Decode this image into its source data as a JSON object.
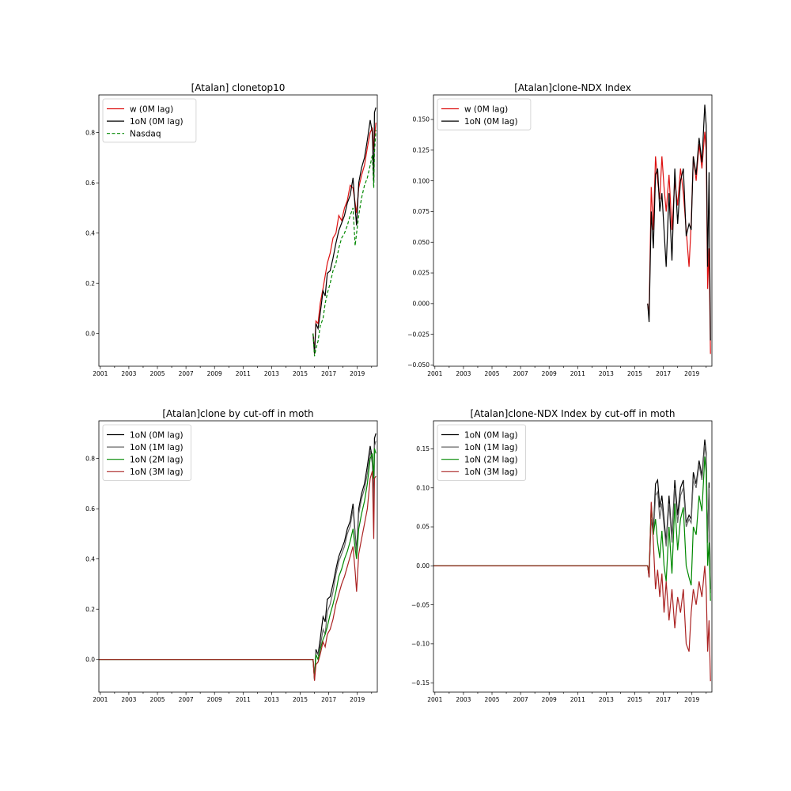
{
  "chart_data": [
    {
      "type": "line",
      "title": "[Atalan] clonetop10",
      "xlabel": "",
      "ylabel": "",
      "xlim": [
        2000.9,
        2020.4
      ],
      "ylim": [
        -0.13,
        0.95
      ],
      "xticks": [
        "2001",
        "2003",
        "2005",
        "2007",
        "2009",
        "2011",
        "2013",
        "2015",
        "2017",
        "2019"
      ],
      "yticks": [
        "0.0",
        "0.2",
        "0.4",
        "0.6",
        "0.8"
      ],
      "legend": "upper-left",
      "series": [
        {
          "name": "w    (0M lag)",
          "color": "#dd1111",
          "dash": "",
          "x": [
            2015.9,
            2016.0,
            2016.1,
            2016.25,
            2016.4,
            2016.6,
            2016.75,
            2016.9,
            2017.1,
            2017.3,
            2017.5,
            2017.7,
            2017.9,
            2018.1,
            2018.3,
            2018.5,
            2018.7,
            2018.85,
            2018.95,
            2019.1,
            2019.3,
            2019.5,
            2019.7,
            2019.9,
            2020.05,
            2020.15,
            2020.2,
            2020.3
          ],
          "values": [
            0.0,
            -0.08,
            0.05,
            0.04,
            0.12,
            0.18,
            0.23,
            0.28,
            0.32,
            0.38,
            0.4,
            0.47,
            0.45,
            0.5,
            0.53,
            0.59,
            0.58,
            0.52,
            0.48,
            0.58,
            0.63,
            0.67,
            0.74,
            0.8,
            0.82,
            0.73,
            0.78,
            0.84
          ]
        },
        {
          "name": "1oN (0M lag)",
          "color": "#000000",
          "dash": "",
          "x": [
            2015.9,
            2016.0,
            2016.1,
            2016.25,
            2016.4,
            2016.6,
            2016.75,
            2016.9,
            2017.1,
            2017.3,
            2017.5,
            2017.7,
            2017.9,
            2018.1,
            2018.3,
            2018.5,
            2018.7,
            2018.85,
            2018.95,
            2019.1,
            2019.3,
            2019.5,
            2019.7,
            2019.9,
            2020.05,
            2020.15,
            2020.2,
            2020.3
          ],
          "values": [
            0.0,
            -0.08,
            0.04,
            0.02,
            0.08,
            0.17,
            0.15,
            0.24,
            0.25,
            0.3,
            0.36,
            0.41,
            0.44,
            0.47,
            0.52,
            0.55,
            0.62,
            0.5,
            0.43,
            0.6,
            0.66,
            0.7,
            0.77,
            0.85,
            0.8,
            0.6,
            0.88,
            0.9
          ]
        },
        {
          "name": "Nasdaq",
          "color": "#008800",
          "dash": "4,2.5",
          "x": [
            2015.9,
            2016.0,
            2016.1,
            2016.25,
            2016.4,
            2016.6,
            2016.75,
            2016.9,
            2017.1,
            2017.3,
            2017.5,
            2017.7,
            2017.9,
            2018.1,
            2018.3,
            2018.5,
            2018.7,
            2018.85,
            2018.95,
            2019.1,
            2019.3,
            2019.5,
            2019.7,
            2019.9,
            2020.05,
            2020.15,
            2020.2,
            2020.3
          ],
          "values": [
            0.0,
            -0.09,
            -0.06,
            -0.03,
            0.03,
            0.06,
            0.12,
            0.16,
            0.2,
            0.25,
            0.28,
            0.34,
            0.38,
            0.4,
            0.43,
            0.47,
            0.5,
            0.35,
            0.4,
            0.47,
            0.54,
            0.59,
            0.62,
            0.67,
            0.71,
            0.58,
            0.72,
            0.81
          ]
        }
      ]
    },
    {
      "type": "line",
      "title": "[Atalan]clone-NDX Index",
      "xlabel": "",
      "ylabel": "",
      "xlim": [
        2000.9,
        2020.4
      ],
      "ylim": [
        -0.051,
        0.17
      ],
      "xticks": [
        "2001",
        "2003",
        "2005",
        "2007",
        "2009",
        "2011",
        "2013",
        "2015",
        "2017",
        "2019"
      ],
      "yticks": [
        "−0.050",
        "−0.025",
        "0.000",
        "0.025",
        "0.050",
        "0.075",
        "0.100",
        "0.125",
        "0.150"
      ],
      "legend": "upper-left",
      "series": [
        {
          "name": "w    (0M lag)",
          "color": "#dd1111",
          "dash": "",
          "x": [
            2015.9,
            2016.0,
            2016.15,
            2016.3,
            2016.45,
            2016.6,
            2016.75,
            2016.9,
            2017.05,
            2017.2,
            2017.4,
            2017.6,
            2017.8,
            2018.0,
            2018.2,
            2018.4,
            2018.6,
            2018.8,
            2018.95,
            2019.1,
            2019.3,
            2019.5,
            2019.7,
            2019.9,
            2020.0,
            2020.1,
            2020.2,
            2020.3
          ],
          "values": [
            0.0,
            -0.01,
            0.095,
            0.06,
            0.12,
            0.1,
            0.085,
            0.12,
            0.095,
            0.075,
            0.105,
            0.06,
            0.1,
            0.08,
            0.11,
            0.09,
            0.06,
            0.03,
            0.065,
            0.12,
            0.1,
            0.13,
            0.11,
            0.14,
            0.125,
            0.012,
            0.045,
            -0.041
          ]
        },
        {
          "name": "1oN (0M lag)",
          "color": "#000000",
          "dash": "",
          "x": [
            2015.9,
            2016.0,
            2016.15,
            2016.3,
            2016.45,
            2016.6,
            2016.75,
            2016.9,
            2017.05,
            2017.2,
            2017.4,
            2017.6,
            2017.8,
            2018.0,
            2018.2,
            2018.4,
            2018.6,
            2018.8,
            2018.95,
            2019.1,
            2019.3,
            2019.5,
            2019.7,
            2019.9,
            2020.0,
            2020.1,
            2020.2,
            2020.3
          ],
          "values": [
            0.0,
            -0.015,
            0.075,
            0.045,
            0.105,
            0.11,
            0.075,
            0.09,
            0.06,
            0.03,
            0.09,
            0.035,
            0.11,
            0.065,
            0.1,
            0.11,
            0.055,
            0.065,
            0.06,
            0.12,
            0.105,
            0.135,
            0.115,
            0.162,
            0.145,
            0.03,
            0.107,
            -0.03
          ]
        }
      ]
    },
    {
      "type": "line",
      "title": "[Atalan]clone by cut-off in moth",
      "xlabel": "",
      "ylabel": "",
      "xlim": [
        2000.9,
        2020.4
      ],
      "ylim": [
        -0.13,
        0.95
      ],
      "xticks": [
        "2001",
        "2003",
        "2005",
        "2007",
        "2009",
        "2011",
        "2013",
        "2015",
        "2017",
        "2019"
      ],
      "yticks": [
        "0.0",
        "0.2",
        "0.4",
        "0.6",
        "0.8"
      ],
      "legend": "upper-left",
      "series": [
        {
          "name": "1oN (0M lag)",
          "color": "#000000",
          "dash": "",
          "x": [
            2000.9,
            2015.9,
            2016.0,
            2016.1,
            2016.25,
            2016.4,
            2016.6,
            2016.75,
            2016.9,
            2017.1,
            2017.3,
            2017.5,
            2017.7,
            2017.9,
            2018.1,
            2018.3,
            2018.5,
            2018.7,
            2018.85,
            2018.95,
            2019.1,
            2019.3,
            2019.5,
            2019.7,
            2019.9,
            2020.05,
            2020.15,
            2020.2,
            2020.3
          ],
          "values": [
            0.0,
            0.0,
            -0.08,
            0.04,
            0.02,
            0.08,
            0.17,
            0.15,
            0.24,
            0.25,
            0.3,
            0.36,
            0.41,
            0.44,
            0.47,
            0.52,
            0.55,
            0.62,
            0.5,
            0.43,
            0.6,
            0.66,
            0.7,
            0.77,
            0.85,
            0.8,
            0.6,
            0.88,
            0.9
          ]
        },
        {
          "name": "1oN (1M lag)",
          "color": "#666666",
          "dash": "",
          "x": [
            2000.9,
            2015.9,
            2016.0,
            2016.1,
            2016.25,
            2016.4,
            2016.6,
            2016.75,
            2016.9,
            2017.1,
            2017.3,
            2017.5,
            2017.7,
            2017.9,
            2018.1,
            2018.3,
            2018.5,
            2018.7,
            2018.85,
            2018.95,
            2019.1,
            2019.3,
            2019.5,
            2019.7,
            2019.9,
            2020.05,
            2020.15,
            2020.2,
            2020.3
          ],
          "values": [
            0.0,
            0.0,
            -0.07,
            0.03,
            0.02,
            0.05,
            0.12,
            0.1,
            0.19,
            0.22,
            0.27,
            0.34,
            0.39,
            0.42,
            0.45,
            0.5,
            0.53,
            0.6,
            0.49,
            0.42,
            0.58,
            0.64,
            0.68,
            0.74,
            0.83,
            0.78,
            0.58,
            0.85,
            0.87
          ]
        },
        {
          "name": "1oN (2M lag)",
          "color": "#008800",
          "dash": "",
          "x": [
            2000.9,
            2015.9,
            2016.0,
            2016.1,
            2016.25,
            2016.4,
            2016.6,
            2016.75,
            2016.9,
            2017.1,
            2017.3,
            2017.5,
            2017.7,
            2017.9,
            2018.1,
            2018.3,
            2018.5,
            2018.7,
            2018.85,
            2018.95,
            2019.1,
            2019.3,
            2019.5,
            2019.7,
            2019.9,
            2020.05,
            2020.15,
            2020.2,
            2020.3
          ],
          "values": [
            0.0,
            0.0,
            -0.08,
            0.02,
            0.0,
            0.04,
            0.08,
            0.1,
            0.13,
            0.18,
            0.22,
            0.27,
            0.33,
            0.36,
            0.4,
            0.43,
            0.47,
            0.52,
            0.44,
            0.4,
            0.52,
            0.58,
            0.63,
            0.7,
            0.8,
            0.82,
            0.72,
            0.84,
            0.82
          ]
        },
        {
          "name": "1oN (3M lag)",
          "color": "#aa2222",
          "dash": "",
          "x": [
            2000.9,
            2015.9,
            2016.0,
            2016.1,
            2016.25,
            2016.4,
            2016.6,
            2016.75,
            2016.9,
            2017.1,
            2017.3,
            2017.5,
            2017.7,
            2017.9,
            2018.1,
            2018.3,
            2018.5,
            2018.7,
            2018.85,
            2018.95,
            2019.1,
            2019.3,
            2019.5,
            2019.7,
            2019.9,
            2020.05,
            2020.15,
            2020.2,
            2020.3
          ],
          "values": [
            0.0,
            0.0,
            -0.085,
            -0.02,
            -0.01,
            0.02,
            0.07,
            0.05,
            0.1,
            0.12,
            0.16,
            0.22,
            0.26,
            0.3,
            0.33,
            0.37,
            0.41,
            0.45,
            0.35,
            0.27,
            0.42,
            0.48,
            0.54,
            0.6,
            0.72,
            0.75,
            0.48,
            0.72,
            0.73
          ]
        }
      ]
    },
    {
      "type": "line",
      "title": "[Atalan]clone-NDX Index by cut-off in moth",
      "xlabel": "",
      "ylabel": "",
      "xlim": [
        2000.9,
        2020.4
      ],
      "ylim": [
        -0.162,
        0.186
      ],
      "xticks": [
        "2001",
        "2003",
        "2005",
        "2007",
        "2009",
        "2011",
        "2013",
        "2015",
        "2017",
        "2019"
      ],
      "yticks": [
        "−0.15",
        "−0.10",
        "−0.05",
        "0.00",
        "0.05",
        "0.10",
        "0.15"
      ],
      "legend": "upper-left",
      "series": [
        {
          "name": "1oN (0M lag)",
          "color": "#000000",
          "dash": "",
          "x": [
            2000.9,
            2015.9,
            2016.0,
            2016.15,
            2016.3,
            2016.45,
            2016.6,
            2016.75,
            2016.9,
            2017.05,
            2017.2,
            2017.4,
            2017.6,
            2017.8,
            2018.0,
            2018.2,
            2018.4,
            2018.6,
            2018.8,
            2018.95,
            2019.1,
            2019.3,
            2019.5,
            2019.7,
            2019.9,
            2020.0,
            2020.1,
            2020.2,
            2020.3
          ],
          "values": [
            0.0,
            0.0,
            -0.015,
            0.075,
            0.045,
            0.105,
            0.11,
            0.075,
            0.09,
            0.06,
            0.03,
            0.09,
            0.035,
            0.11,
            0.065,
            0.1,
            0.11,
            0.055,
            0.065,
            0.06,
            0.12,
            0.105,
            0.135,
            0.115,
            0.162,
            0.145,
            0.03,
            0.107,
            -0.03
          ]
        },
        {
          "name": "1oN (1M lag)",
          "color": "#666666",
          "dash": "",
          "x": [
            2000.9,
            2015.9,
            2016.0,
            2016.15,
            2016.3,
            2016.45,
            2016.6,
            2016.75,
            2016.9,
            2017.05,
            2017.2,
            2017.4,
            2017.6,
            2017.8,
            2018.0,
            2018.2,
            2018.4,
            2018.6,
            2018.8,
            2018.95,
            2019.1,
            2019.3,
            2019.5,
            2019.7,
            2019.9,
            2020.0,
            2020.1,
            2020.2,
            2020.3
          ],
          "values": [
            0.0,
            0.0,
            -0.012,
            0.06,
            0.04,
            0.09,
            0.095,
            0.06,
            0.08,
            0.05,
            0.025,
            0.08,
            0.03,
            0.1,
            0.055,
            0.09,
            0.1,
            0.05,
            0.06,
            0.055,
            0.11,
            0.1,
            0.13,
            0.11,
            0.155,
            0.14,
            0.03,
            0.1,
            -0.035
          ]
        },
        {
          "name": "1oN (2M lag)",
          "color": "#008800",
          "dash": "",
          "x": [
            2000.9,
            2015.9,
            2016.0,
            2016.15,
            2016.3,
            2016.45,
            2016.6,
            2016.75,
            2016.9,
            2017.05,
            2017.2,
            2017.4,
            2017.6,
            2017.8,
            2018.0,
            2018.2,
            2018.4,
            2018.6,
            2018.8,
            2018.95,
            2019.1,
            2019.3,
            2019.5,
            2019.7,
            2019.9,
            2020.0,
            2020.1,
            2020.2,
            2020.3
          ],
          "values": [
            0.0,
            0.0,
            -0.01,
            0.08,
            0.04,
            0.06,
            0.03,
            0.01,
            0.045,
            0.0,
            -0.02,
            0.05,
            -0.01,
            0.08,
            0.02,
            0.06,
            0.075,
            0.0,
            -0.015,
            -0.025,
            0.05,
            0.04,
            0.09,
            0.07,
            0.14,
            0.12,
            0.0,
            0.03,
            -0.045
          ]
        },
        {
          "name": "1oN (3M lag)",
          "color": "#aa2222",
          "dash": "",
          "x": [
            2000.9,
            2015.9,
            2016.0,
            2016.15,
            2016.3,
            2016.45,
            2016.6,
            2016.75,
            2016.9,
            2017.05,
            2017.2,
            2017.4,
            2017.6,
            2017.8,
            2018.0,
            2018.2,
            2018.4,
            2018.6,
            2018.8,
            2018.95,
            2019.1,
            2019.3,
            2019.5,
            2019.7,
            2019.9,
            2020.0,
            2020.1,
            2020.2,
            2020.3
          ],
          "values": [
            0.0,
            0.0,
            -0.015,
            0.082,
            0.03,
            -0.03,
            -0.005,
            -0.04,
            -0.01,
            -0.06,
            -0.02,
            -0.07,
            -0.03,
            -0.08,
            -0.04,
            -0.06,
            -0.03,
            -0.1,
            -0.11,
            -0.06,
            -0.03,
            -0.05,
            -0.02,
            -0.04,
            0.0,
            -0.03,
            -0.11,
            -0.07,
            -0.148
          ]
        }
      ]
    }
  ]
}
